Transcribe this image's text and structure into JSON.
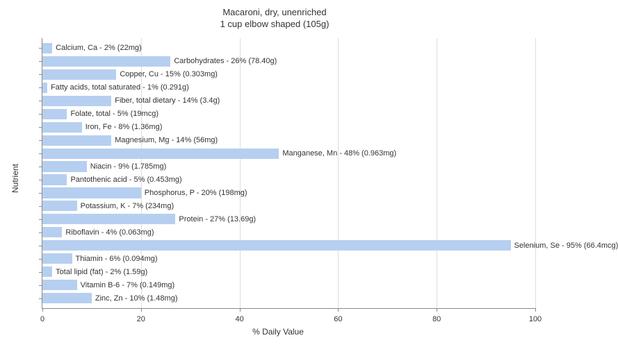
{
  "chart": {
    "type": "bar-horizontal",
    "title_line1": "Macaroni, dry, unenriched",
    "title_line2": "1 cup elbow shaped (105g)",
    "title_fontsize": 13,
    "y_axis_label": "Nutrient",
    "x_axis_label": "% Daily Value",
    "label_fontsize": 12,
    "xlim": [
      0,
      100
    ],
    "xticks": [
      0,
      20,
      40,
      60,
      80,
      100
    ],
    "bar_color": "#b6cff0",
    "background_color": "#ffffff",
    "grid_color": "#dddddd",
    "text_color": "#333333",
    "tick_fontsize": 11,
    "bar_label_fontsize": 11,
    "nutrients": [
      {
        "label": "Calcium, Ca - 2% (22mg)",
        "value": 2
      },
      {
        "label": "Carbohydrates - 26% (78.40g)",
        "value": 26
      },
      {
        "label": "Copper, Cu - 15% (0.303mg)",
        "value": 15
      },
      {
        "label": "Fatty acids, total saturated - 1% (0.291g)",
        "value": 1
      },
      {
        "label": "Fiber, total dietary - 14% (3.4g)",
        "value": 14
      },
      {
        "label": "Folate, total - 5% (19mcg)",
        "value": 5
      },
      {
        "label": "Iron, Fe - 8% (1.36mg)",
        "value": 8
      },
      {
        "label": "Magnesium, Mg - 14% (56mg)",
        "value": 14
      },
      {
        "label": "Manganese, Mn - 48% (0.963mg)",
        "value": 48
      },
      {
        "label": "Niacin - 9% (1.785mg)",
        "value": 9
      },
      {
        "label": "Pantothenic acid - 5% (0.453mg)",
        "value": 5
      },
      {
        "label": "Phosphorus, P - 20% (198mg)",
        "value": 20
      },
      {
        "label": "Potassium, K - 7% (234mg)",
        "value": 7
      },
      {
        "label": "Protein - 27% (13.69g)",
        "value": 27
      },
      {
        "label": "Riboflavin - 4% (0.063mg)",
        "value": 4
      },
      {
        "label": "Selenium, Se - 95% (66.4mcg)",
        "value": 95
      },
      {
        "label": "Thiamin - 6% (0.094mg)",
        "value": 6
      },
      {
        "label": "Total lipid (fat) - 2% (1.59g)",
        "value": 2
      },
      {
        "label": "Vitamin B-6 - 7% (0.149mg)",
        "value": 7
      },
      {
        "label": "Zinc, Zn - 10% (1.48mg)",
        "value": 10
      }
    ]
  }
}
